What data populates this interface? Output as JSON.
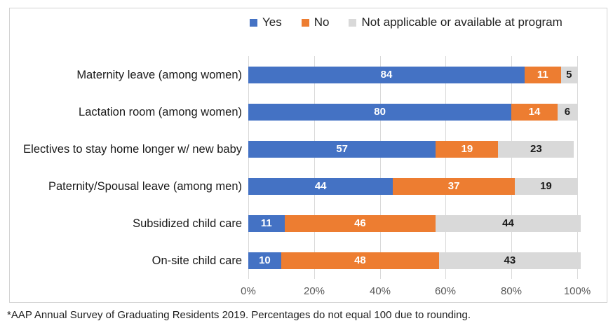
{
  "chart_data": {
    "type": "bar",
    "stacked": true,
    "orientation": "horizontal",
    "title": "",
    "categories": [
      "Maternity leave (among women)",
      "Lactation room (among women)",
      "Electives to stay home longer w/ new baby",
      "Paternity/Spousal leave (among men)",
      "Subsidized child care",
      "On-site child care"
    ],
    "series": [
      {
        "name": "Yes",
        "color": "#4472C4",
        "label_color": "#ffffff",
        "values": [
          84,
          80,
          57,
          44,
          11,
          10
        ]
      },
      {
        "name": "No",
        "color": "#ED7D31",
        "label_color": "#ffffff",
        "values": [
          11,
          14,
          19,
          37,
          46,
          48
        ]
      },
      {
        "name": "Not applicable or available at program",
        "color": "#D9D9D9",
        "label_color": "#1a1a1a",
        "values": [
          5,
          6,
          23,
          19,
          44,
          43
        ]
      }
    ],
    "x_axis": {
      "min": 0,
      "max": 100,
      "tick_values": [
        0,
        20,
        40,
        60,
        80,
        100
      ],
      "tick_labels": [
        "0%",
        "20%",
        "40%",
        "60%",
        "80%",
        "100%"
      ]
    },
    "legend_position": "top",
    "grid": true
  },
  "footnote": {
    "text": "*AAP Annual Survey of Graduating Residents 2019. Percentages do not equal 100 due to rounding."
  },
  "colors": {
    "frame_border": "#d2d2d2",
    "gridline": "#d9d9d9",
    "axis_text": "#595959",
    "label_text": "#1a1a1a"
  }
}
